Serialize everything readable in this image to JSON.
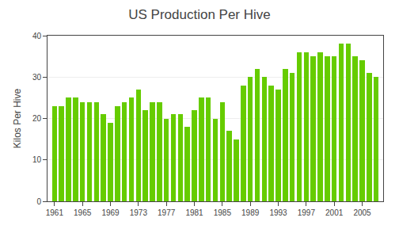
{
  "chart_data": {
    "type": "bar",
    "title": "US Production Per Hive",
    "ylabel": "Kilos Per Hive",
    "x": [
      1961,
      1962,
      1963,
      1964,
      1965,
      1966,
      1967,
      1968,
      1969,
      1970,
      1971,
      1972,
      1973,
      1974,
      1975,
      1976,
      1977,
      1978,
      1979,
      1980,
      1981,
      1982,
      1983,
      1984,
      1985,
      1986,
      1987,
      1988,
      1989,
      1990,
      1991,
      1992,
      1993,
      1994,
      1995,
      1996,
      1997,
      1998,
      1999,
      2000,
      2001,
      2002,
      2003,
      2004,
      2005,
      2006,
      2007
    ],
    "values": [
      23,
      23,
      25,
      25,
      24,
      24,
      24,
      21,
      19,
      23,
      24,
      25,
      27,
      22,
      24,
      24,
      20,
      21,
      21,
      18,
      22,
      25,
      25,
      20,
      24,
      17,
      15,
      28,
      30,
      32,
      30,
      28,
      27,
      32,
      31,
      36,
      36,
      35,
      36,
      35,
      35,
      38,
      38,
      35,
      34,
      31,
      30
    ],
    "color": "#66cc00",
    "xlim": [
      1960,
      2008
    ],
    "xticks": [
      1961,
      1965,
      1969,
      1973,
      1977,
      1981,
      1985,
      1989,
      1993,
      1997,
      2001,
      2005
    ],
    "ylim": [
      0,
      40
    ],
    "yticks": [
      0,
      10,
      20,
      30,
      40
    ],
    "grid": true
  }
}
